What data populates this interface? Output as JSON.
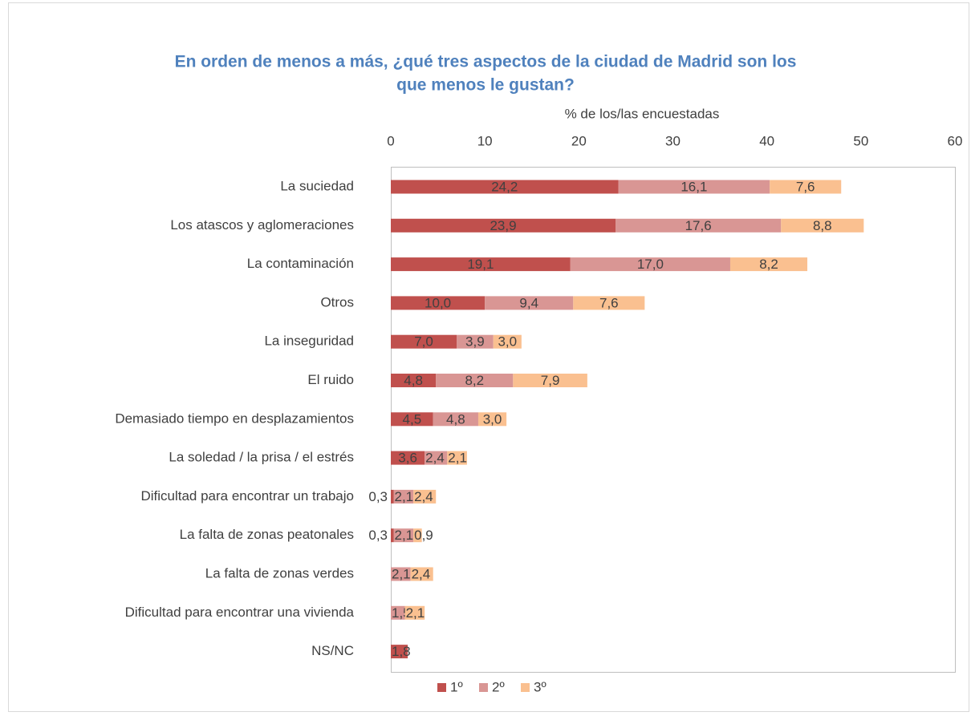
{
  "chart_data": {
    "type": "stacked-barh",
    "title": [
      "En orden de menos a más, ¿qué tres aspectos de la ciudad de Madrid son los",
      "que menos le gustan?"
    ],
    "x_label": "% de los/las encuestadas",
    "categories": [
      "La suciedad",
      "Los atascos y aglomeraciones",
      "La contaminación",
      "Otros",
      "La inseguridad",
      "El ruido",
      "Demasiado tiempo en desplazamientos",
      "La soledad / la prisa / el estrés",
      "Dificultad para encontrar un trabajo",
      "La falta de zonas peatonales",
      "La falta de zonas verdes",
      "Dificultad para encontrar una vivienda",
      "NS/NC"
    ],
    "series": [
      {
        "name": "1º",
        "color": "#c0504d",
        "values": [
          24.2,
          23.9,
          19.1,
          10.0,
          7.0,
          4.8,
          4.5,
          3.6,
          0.3,
          0.3,
          null,
          null,
          1.8
        ],
        "value_labels": [
          "24,2",
          "23,9",
          "19,1",
          "10,0",
          "7,0",
          "4,8",
          "4,5",
          "3,6",
          "0,3",
          "0,3",
          null,
          null,
          "1,8"
        ]
      },
      {
        "name": "2º",
        "color": "#d99694",
        "values": [
          16.1,
          17.6,
          17.0,
          9.4,
          3.9,
          8.2,
          4.8,
          2.4,
          2.1,
          2.1,
          2.1,
          1.5,
          null
        ],
        "value_labels": [
          "16,1",
          "17,6",
          "17,0",
          "9,4",
          "3,9",
          "8,2",
          "4,8",
          "2,4",
          "2,1",
          "2,1",
          "2,1",
          "1,5",
          null
        ]
      },
      {
        "name": "3º",
        "color": "#fac090",
        "values": [
          7.6,
          8.8,
          8.2,
          7.6,
          3.0,
          7.9,
          3.0,
          2.1,
          2.4,
          0.9,
          2.4,
          2.1,
          null
        ],
        "value_labels": [
          "7,6",
          "8,8",
          "8,2",
          "7,6",
          "3,0",
          "7,9",
          "3,0",
          "2,1",
          "2,4",
          "0,9",
          "2,4",
          "2,1",
          null
        ]
      }
    ],
    "xlim": [
      0,
      60
    ],
    "xticks": [
      0,
      10,
      20,
      30,
      40,
      50,
      60
    ],
    "legend": "bottom"
  }
}
